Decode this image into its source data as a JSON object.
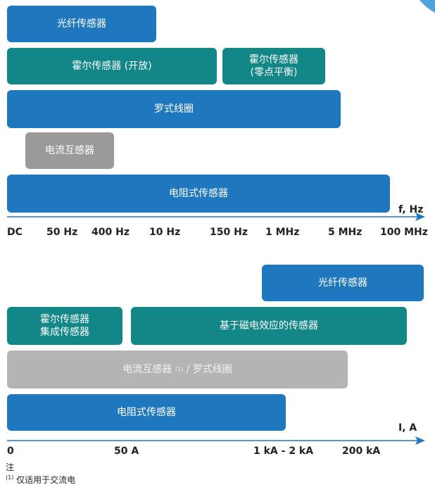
{
  "frequency": {
    "bars": [
      {
        "label": "光纤传感器"
      },
      {
        "label": "霍尔传感器 (开放)"
      },
      {
        "label": "霍尔传感器",
        "label2": "(零点平衡)"
      },
      {
        "label": "罗式线圈"
      },
      {
        "label": "电流互感器"
      },
      {
        "label": "电阻式传感器"
      }
    ],
    "axis_label": "f, Hz",
    "ticks": [
      "DC",
      "50 Hz",
      "400 Hz",
      "10 Hz",
      "150 Hz",
      "1 MHz",
      "5 MHz",
      "100 MHz"
    ]
  },
  "current": {
    "bars": [
      {
        "label": "光纤传感器"
      },
      {
        "label": "霍尔传感器",
        "label2": "集成传感器"
      },
      {
        "label": "基于磁电效应的传感器"
      },
      {
        "label": "电流互感器 ",
        "sup": "(1)",
        "rest": " / 罗式线圈"
      },
      {
        "label": "电阻式传感器"
      }
    ],
    "axis_label": "I, A",
    "ticks": [
      "0",
      "50 A",
      "1 kA - 2 kA",
      "200 kA"
    ]
  },
  "notes": {
    "title": "注",
    "items": [
      {
        "marker": "(1)",
        "text": " 仅适用于交流电"
      }
    ]
  }
}
